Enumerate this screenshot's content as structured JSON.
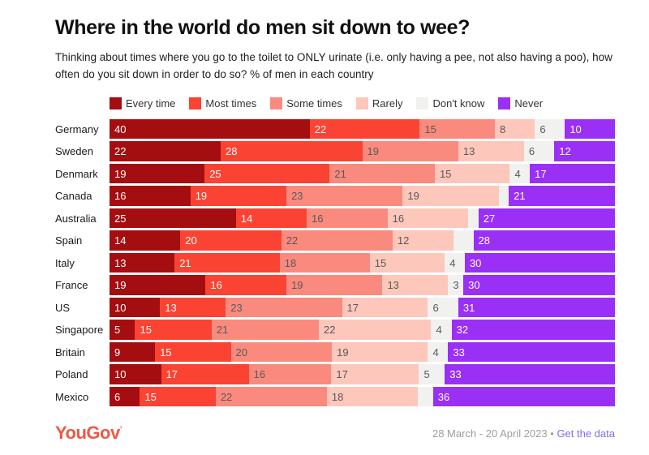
{
  "header": {
    "title": "Where in the world do men sit down to wee?",
    "subtitle": "Thinking about times where you go to the toilet to ONLY urinate (i.e. only having a pee, not also having a poo), how often do you sit down in order to do so? % of men in each country"
  },
  "chart_data": {
    "type": "bar",
    "stacked": true,
    "orientation": "horizontal",
    "unit": "% of men in each country",
    "legend_position": "top",
    "series_names": [
      "Every time",
      "Most times",
      "Some times",
      "Rarely",
      "Don't know",
      "Never"
    ],
    "series_colors": [
      "#a40e11",
      "#fa4332",
      "#fa8a7d",
      "#fdc7bb",
      "#f1f1ef",
      "#9a2ff5"
    ],
    "value_label_colors": [
      "#ffffff",
      "#ffffff",
      "#595959",
      "#595959",
      "#595959",
      "#ffffff"
    ],
    "categories": [
      "Germany",
      "Sweden",
      "Denmark",
      "Canada",
      "Australia",
      "Spain",
      "Italy",
      "France",
      "US",
      "Singapore",
      "Britain",
      "Poland",
      "Mexico"
    ],
    "rows": [
      {
        "country": "Germany",
        "values": [
          40,
          22,
          15,
          8,
          6,
          10
        ],
        "labels": [
          "40",
          "22",
          "15",
          "8",
          "6",
          "10"
        ]
      },
      {
        "country": "Sweden",
        "values": [
          22,
          28,
          19,
          13,
          6,
          12
        ],
        "labels": [
          "22",
          "28",
          "19",
          "13",
          "6",
          "12"
        ]
      },
      {
        "country": "Denmark",
        "values": [
          19,
          25,
          21,
          15,
          4,
          17
        ],
        "labels": [
          "19",
          "25",
          "21",
          "15",
          "4",
          "17"
        ]
      },
      {
        "country": "Canada",
        "values": [
          16,
          19,
          23,
          19,
          2,
          21
        ],
        "labels": [
          "16",
          "19",
          "23",
          "19",
          "",
          "21"
        ]
      },
      {
        "country": "Australia",
        "values": [
          25,
          14,
          16,
          16,
          2,
          27
        ],
        "labels": [
          "25",
          "14",
          "16",
          "16",
          "",
          "27"
        ]
      },
      {
        "country": "Spain",
        "values": [
          14,
          20,
          22,
          12,
          4,
          28
        ],
        "labels": [
          "14",
          "20",
          "22",
          "12",
          "",
          "28"
        ]
      },
      {
        "country": "Italy",
        "values": [
          13,
          21,
          18,
          15,
          4,
          30
        ],
        "labels": [
          "13",
          "21",
          "18",
          "15",
          "4",
          "30"
        ]
      },
      {
        "country": "France",
        "values": [
          19,
          16,
          19,
          13,
          3,
          30
        ],
        "labels": [
          "19",
          "16",
          "19",
          "13",
          "3",
          "30"
        ]
      },
      {
        "country": "US",
        "values": [
          10,
          13,
          23,
          17,
          6,
          31
        ],
        "labels": [
          "10",
          "13",
          "23",
          "17",
          "6",
          "31"
        ]
      },
      {
        "country": "Singapore",
        "values": [
          5,
          15,
          21,
          22,
          4,
          32
        ],
        "labels": [
          "5",
          "15",
          "21",
          "22",
          "4",
          "32"
        ]
      },
      {
        "country": "Britain",
        "values": [
          9,
          15,
          20,
          19,
          4,
          33
        ],
        "labels": [
          "9",
          "15",
          "20",
          "19",
          "4",
          "33"
        ]
      },
      {
        "country": "Poland",
        "values": [
          10,
          17,
          16,
          17,
          5,
          33
        ],
        "labels": [
          "10",
          "17",
          "16",
          "17",
          "5",
          "33"
        ]
      },
      {
        "country": "Mexico",
        "values": [
          6,
          15,
          22,
          18,
          3,
          36
        ],
        "labels": [
          "6",
          "15",
          "22",
          "18",
          "",
          "36"
        ]
      }
    ]
  },
  "footer": {
    "logo": "YouGov",
    "logo_mark": "’",
    "date_range": "28 March - 20 April 2023",
    "separator": "•",
    "link": "Get the data",
    "logo_color": "#eb5a47",
    "link_color": "#7b70ea"
  }
}
